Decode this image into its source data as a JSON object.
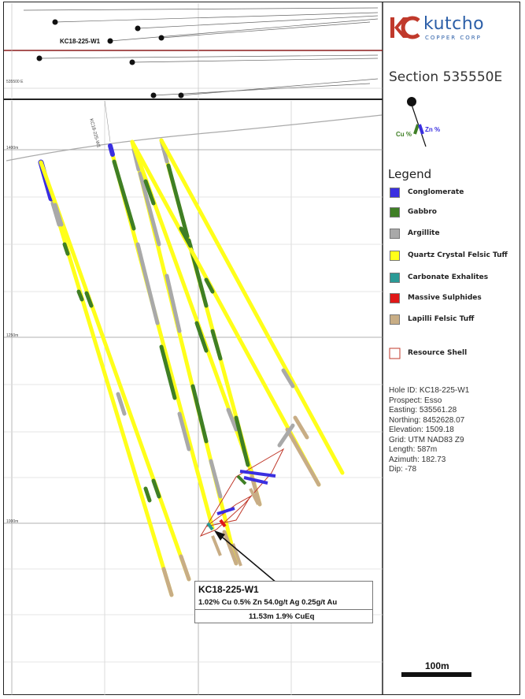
{
  "logo": {
    "monogram": "KC",
    "name": "kutcho",
    "subtitle": "COPPER CORP"
  },
  "section_title": "Section 535550E",
  "assay_icon": {
    "cu_label": "Cu %",
    "zn_label": "Zn %"
  },
  "legend": {
    "title": "Legend",
    "items": [
      {
        "label": "Conglomerate",
        "color": "#3a2fe0"
      },
      {
        "label": "Gabbro",
        "color": "#3f7f25"
      },
      {
        "label": "Argillite",
        "color": "#a9a9a9"
      },
      {
        "label": "Quartz Crystal Felsic Tuff",
        "color": "#ffff1a"
      },
      {
        "label": "Carbonate Exhalites",
        "color": "#2a9a96"
      },
      {
        "label": "Massive Sulphides",
        "color": "#e01818"
      },
      {
        "label": "Lapilli Felsic Tuff",
        "color": "#c8ad85"
      }
    ],
    "shell_label": "Resource Shell",
    "shell_color": "#c0392b"
  },
  "hole_info": {
    "hole_id": "Hole ID: KC18-225-W1",
    "prospect": "Prospect: Esso",
    "easting": "Easting: 535561.28",
    "northing": "Northing: 8452628.07",
    "elevation": "Elevation: 1509.18",
    "grid": "Grid: UTM NAD83 Z9",
    "length": "Length: 587m",
    "azimuth": "Azimuth: 182.73",
    "dip": "Dip: -78"
  },
  "plan_view": {
    "hole_label": "KC18-225-W1",
    "easting_label": "535500 E"
  },
  "section_labels": {
    "hole_trace_label": "KC18-225-W1",
    "elev_1400": "1400m",
    "elev_1250": "1250m",
    "elev_1000": "1000m"
  },
  "callout": {
    "title": "KC18-225-W1",
    "assay": "1.02% Cu 0.5% Zn 54.0g/t Ag 0.25g/t Au",
    "interval": "11.53m 1.9% CuEq"
  },
  "scale_bar": {
    "label": "100m"
  }
}
